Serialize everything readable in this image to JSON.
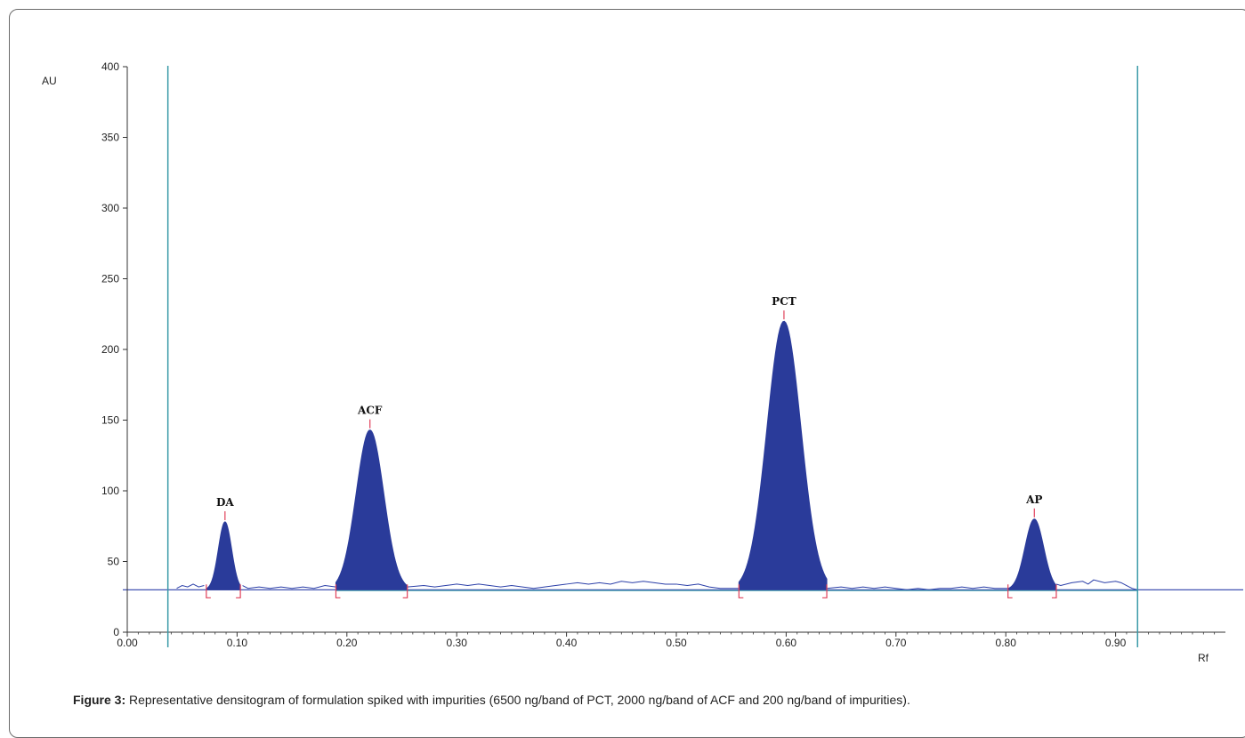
{
  "caption": {
    "label": "Figure 3:",
    "text": "Representative densitogram of formulation spiked with impurities (6500 ng/band of PCT, 2000 ng/band of ACF and 200 ng/band of impurities)."
  },
  "colors": {
    "peak_fill": "#2a3b9a",
    "trace": "#2b3fa8",
    "baseline": "#3aa0a8",
    "vertical_markers": "#3a9aa8",
    "integration_marks": "#e0405a",
    "axis": "#333333"
  },
  "chart_data": {
    "type": "line",
    "title": "",
    "xlabel": "Rf",
    "ylabel": "AU",
    "xlim": [
      0.0,
      1.0
    ],
    "ylim": [
      0,
      400
    ],
    "x_ticks": [
      "0.00",
      "0.10",
      "0.20",
      "0.30",
      "0.40",
      "0.50",
      "0.60",
      "0.70",
      "0.80",
      "0.90"
    ],
    "y_ticks": [
      "0",
      "50",
      "100",
      "150",
      "200",
      "250",
      "300",
      "350",
      "400"
    ],
    "baseline_au": 30,
    "scan_range_markers_rf": [
      0.037,
      0.92
    ],
    "peaks": [
      {
        "label": "DA",
        "rf": 0.089,
        "height_au": 78,
        "start_rf": 0.072,
        "end_rf": 0.103
      },
      {
        "label": "ACF",
        "rf": 0.221,
        "height_au": 143,
        "start_rf": 0.19,
        "end_rf": 0.255
      },
      {
        "label": "PCT",
        "rf": 0.598,
        "height_au": 220,
        "start_rf": 0.557,
        "end_rf": 0.637
      },
      {
        "label": "AP",
        "rf": 0.826,
        "height_au": 80,
        "start_rf": 0.802,
        "end_rf": 0.846
      }
    ],
    "trace_segments": [
      {
        "x": [
          0.045,
          0.05,
          0.055,
          0.06,
          0.065,
          0.07
        ],
        "y": [
          31,
          33,
          32,
          34,
          32,
          33
        ]
      },
      {
        "x": [
          0.105,
          0.11,
          0.12,
          0.13,
          0.14,
          0.15,
          0.16,
          0.17,
          0.18,
          0.19
        ],
        "y": [
          33,
          31,
          32,
          31,
          32,
          31,
          32,
          31,
          33,
          32
        ]
      },
      {
        "x": [
          0.255,
          0.27,
          0.28,
          0.29,
          0.3,
          0.31,
          0.32,
          0.33,
          0.34,
          0.35,
          0.36,
          0.37,
          0.38,
          0.39,
          0.4,
          0.41,
          0.42,
          0.43,
          0.44,
          0.45,
          0.46,
          0.47,
          0.48,
          0.49,
          0.5,
          0.51,
          0.52,
          0.53,
          0.54,
          0.557
        ],
        "y": [
          32,
          33,
          32,
          33,
          34,
          33,
          34,
          33,
          32,
          33,
          32,
          31,
          32,
          33,
          34,
          35,
          34,
          35,
          34,
          36,
          35,
          36,
          35,
          34,
          34,
          33,
          34,
          32,
          31,
          31
        ]
      },
      {
        "x": [
          0.637,
          0.65,
          0.66,
          0.67,
          0.68,
          0.69,
          0.7,
          0.71,
          0.72,
          0.73,
          0.74,
          0.75,
          0.76,
          0.77,
          0.78,
          0.79,
          0.802
        ],
        "y": [
          31,
          32,
          31,
          32,
          31,
          32,
          31,
          30,
          31,
          30,
          31,
          31,
          32,
          31,
          32,
          31,
          31
        ]
      },
      {
        "x": [
          0.846,
          0.85,
          0.86,
          0.87,
          0.875,
          0.88,
          0.89,
          0.9,
          0.905,
          0.91,
          0.915,
          0.92
        ],
        "y": [
          34,
          33,
          35,
          36,
          34,
          37,
          35,
          36,
          35,
          33,
          31,
          30
        ]
      }
    ]
  }
}
